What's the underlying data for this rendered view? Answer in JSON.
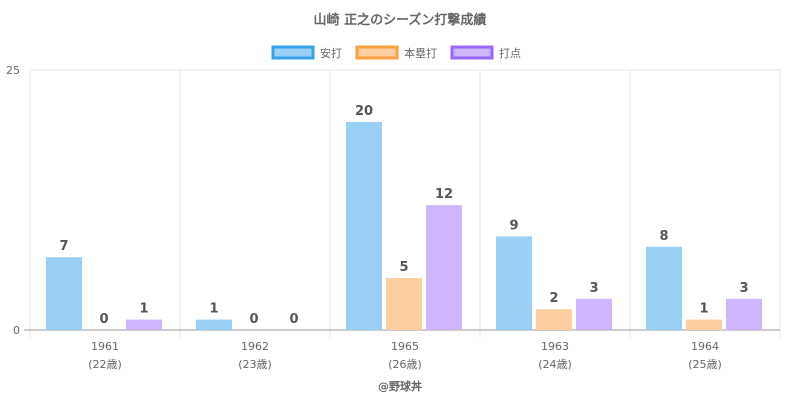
{
  "chart_data": {
    "type": "bar",
    "title": "山崎 正之のシーズン打撃成績",
    "categories": [
      "1961",
      "1962",
      "1965",
      "1963",
      "1964"
    ],
    "sublabels": [
      "(22歳)",
      "(23歳)",
      "(26歳)",
      "(24歳)",
      "(25歳)"
    ],
    "series": [
      {
        "name": "安打",
        "values": [
          7,
          1,
          20,
          9,
          8
        ],
        "fill": "#9ad0f5",
        "stroke": "#36a2eb"
      },
      {
        "name": "本塁打",
        "values": [
          0,
          0,
          5,
          2,
          1
        ],
        "fill": "#ffcf9f",
        "stroke": "#ff9f40"
      },
      {
        "name": "打点",
        "values": [
          1,
          0,
          12,
          3,
          3
        ],
        "fill": "#cfb5fe",
        "stroke": "#9966ff"
      }
    ],
    "ylim": [
      0,
      25
    ],
    "yticks": [
      "0",
      "25"
    ],
    "xlabel": "@野球丼",
    "ylabel": "",
    "grid": true,
    "legend": "top"
  }
}
